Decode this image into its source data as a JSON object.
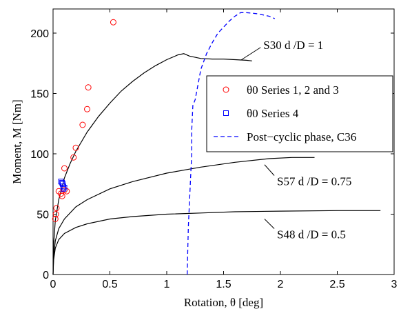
{
  "chart_data": {
    "type": "scatter",
    "xlabel": "Rotation, θ [deg]",
    "ylabel": "Moment, M [Nm]",
    "xlim": [
      0,
      3
    ],
    "ylim": [
      0,
      220
    ],
    "xticks": [
      0,
      0.5,
      1,
      1.5,
      2,
      2.5,
      3
    ],
    "xtick_labels": [
      "0",
      "0.5",
      "1",
      "1.5",
      "2",
      "2.5",
      "3"
    ],
    "yticks": [
      0,
      50,
      100,
      150,
      200
    ],
    "ytick_labels": [
      "0",
      "50",
      "100",
      "150",
      "200"
    ],
    "grid": false,
    "legend_position": "right",
    "legend": [
      {
        "label": "θ0 Series 1, 2 and 3",
        "marker": "circle",
        "color": "#ff0000"
      },
      {
        "label": "θ0 Series 4",
        "marker": "square",
        "color": "#0000ff"
      },
      {
        "label": "Post−cyclic phase, C36",
        "marker": "dashed-line",
        "color": "#0000ff"
      }
    ],
    "series": [
      {
        "style": "line",
        "color": "#000000",
        "x": [
          0,
          0.005,
          0.02,
          0.05,
          0.1,
          0.15,
          0.2,
          0.3,
          0.4,
          0.5,
          0.6,
          0.7,
          0.8,
          0.9,
          1.0,
          1.1,
          1.15,
          1.2,
          1.3,
          1.4,
          1.5,
          1.6,
          1.7,
          1.75
        ],
        "y": [
          0,
          25,
          45,
          62,
          80,
          92,
          102,
          118,
          131,
          142,
          152,
          160,
          167,
          173,
          178,
          182,
          183,
          181,
          179,
          178.5,
          178.5,
          178,
          177.5,
          177
        ]
      },
      {
        "style": "line",
        "color": "#000000",
        "x": [
          0,
          0.005,
          0.02,
          0.05,
          0.1,
          0.2,
          0.3,
          0.5,
          0.7,
          1.0,
          1.3,
          1.6,
          1.9,
          2.1,
          2.2,
          2.3
        ],
        "y": [
          0,
          15,
          28,
          38,
          46,
          56,
          62,
          71,
          77,
          84,
          89,
          93,
          96,
          97,
          97,
          97
        ]
      },
      {
        "style": "line",
        "color": "#000000",
        "x": [
          0,
          0.005,
          0.02,
          0.05,
          0.1,
          0.2,
          0.3,
          0.5,
          0.7,
          1.0,
          1.3,
          1.6,
          2.0,
          2.5,
          2.88
        ],
        "y": [
          0,
          12,
          22,
          29,
          34,
          39,
          42,
          46,
          48,
          50,
          51,
          52,
          52.5,
          53,
          53
        ]
      },
      {
        "style": "dashed",
        "color": "#0000ff",
        "x": [
          1.18,
          1.185,
          1.19,
          1.2,
          1.21,
          1.22,
          1.22,
          1.23,
          1.25,
          1.27,
          1.3,
          1.35,
          1.4,
          1.45,
          1.5,
          1.55,
          1.6,
          1.65,
          1.7,
          1.75,
          1.8,
          1.9,
          1.95
        ],
        "y": [
          0,
          20,
          40,
          60,
          80,
          100,
          120,
          140,
          145,
          155,
          170,
          183,
          192,
          200,
          205,
          210,
          214,
          217,
          217,
          216.5,
          216,
          214,
          212
        ]
      },
      {
        "name": "θ0 Series 1, 2 and 3",
        "style": "circle",
        "color": "#ff0000",
        "x": [
          0.02,
          0.025,
          0.03,
          0.05,
          0.07,
          0.08,
          0.1,
          0.12,
          0.1,
          0.18,
          0.2,
          0.26,
          0.3,
          0.31,
          0.53
        ],
        "y": [
          46,
          50,
          55,
          69,
          67,
          65,
          70,
          69,
          88,
          97,
          105,
          124,
          137,
          155,
          209
        ]
      },
      {
        "name": "θ0 Series 4",
        "style": "square",
        "color": "#0000ff",
        "x": [
          0.07,
          0.08,
          0.09,
          0.09,
          0.1,
          0.085
        ],
        "y": [
          77,
          76,
          73,
          71,
          72,
          75
        ]
      }
    ],
    "annotations": [
      {
        "text": "S30 d /D = 1",
        "x": 1.85,
        "y": 187,
        "arrow_to": [
          1.65,
          177.5
        ]
      },
      {
        "text": "S57 d /D = 0.75",
        "x": 1.97,
        "y": 74,
        "arrow_to": [
          1.86,
          91
        ]
      },
      {
        "text": "S48 d /D = 0.5",
        "x": 1.97,
        "y": 30,
        "arrow_to": [
          1.86,
          46
        ]
      }
    ]
  }
}
